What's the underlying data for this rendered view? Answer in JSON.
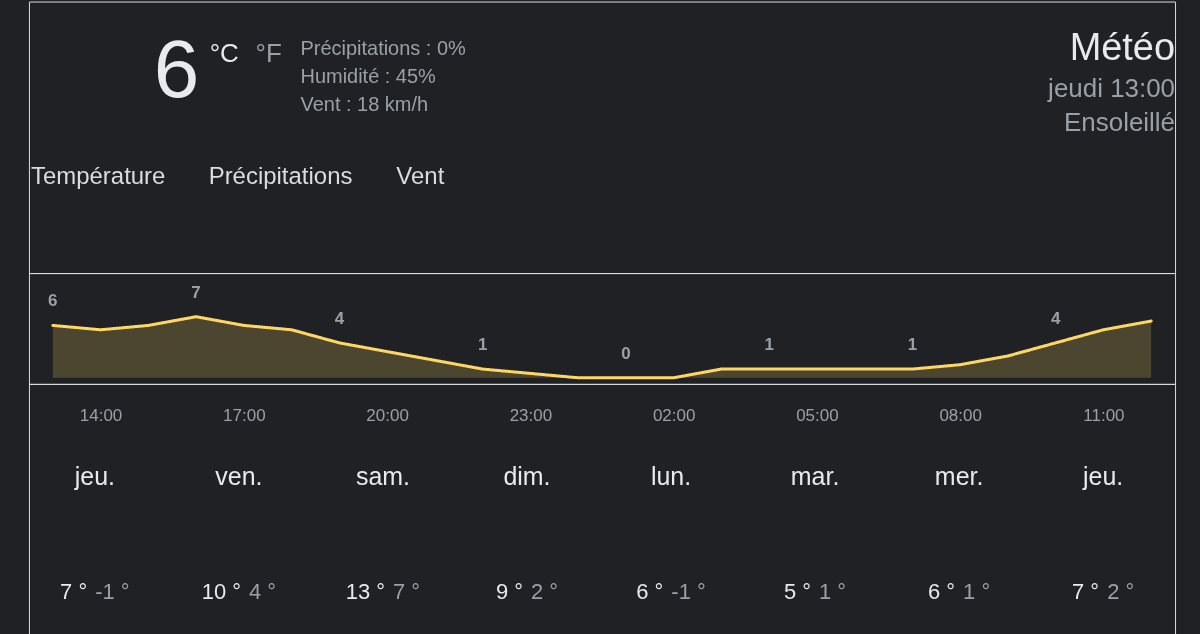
{
  "chart_data": [
    {
      "type": "other",
      "title": "Météo",
      "annotations": [
        "6",
        "°C",
        "°F",
        "Précipitations : 0%",
        "Humidité : 45%",
        "Vent : 18 km/h",
        "jeudi 13:00",
        "Ensoleillé",
        "Température",
        "Précipitations",
        "Vent"
      ]
    },
    {
      "type": "area",
      "color": "#fdd663",
      "categories": [
        null,
        "14:00",
        null,
        null,
        "17:00",
        null,
        null,
        "20:00",
        null,
        null,
        "23:00",
        null,
        null,
        "02:00",
        null,
        null,
        "05:00",
        null,
        null,
        "08:00",
        null,
        null,
        "11:00",
        null
      ],
      "values": [
        6,
        5.5,
        6,
        7,
        6,
        5.5,
        4,
        3,
        2,
        1,
        0.5,
        0,
        0,
        0,
        1,
        1,
        1,
        1,
        1,
        1.5,
        2.5,
        4,
        5.5,
        6.5
      ],
      "value_labels": [
        "6",
        null,
        null,
        "7",
        null,
        null,
        "4",
        null,
        null,
        "1",
        null,
        null,
        "0",
        null,
        null,
        "1",
        null,
        null,
        "1",
        null,
        null,
        "4",
        null,
        null
      ],
      "ylim": [
        -0.7,
        12
      ],
      "tick_labels": "x"
    },
    {
      "type": "other",
      "categories": [
        "jeu.",
        "ven.",
        "sam.",
        "dim.",
        "lun.",
        "mar.",
        "mer.",
        "jeu."
      ],
      "series": [
        {
          "color": "#e8eaed",
          "values": [
            7,
            10,
            13,
            9,
            6,
            5,
            6,
            7
          ],
          "value_labels": [
            "7 °",
            "10 °",
            "13 °",
            "9 °",
            "6 °",
            "5 °",
            "6 °",
            "7 °"
          ]
        },
        {
          "color": "#9aa0a6",
          "values": [
            -1,
            4,
            7,
            2,
            -1,
            1,
            1,
            2
          ],
          "value_labels": [
            "-1 °",
            "4 °",
            "7 °",
            "2 °",
            "-1 °",
            "1 °",
            "1 °",
            "2 °"
          ]
        }
      ]
    }
  ]
}
